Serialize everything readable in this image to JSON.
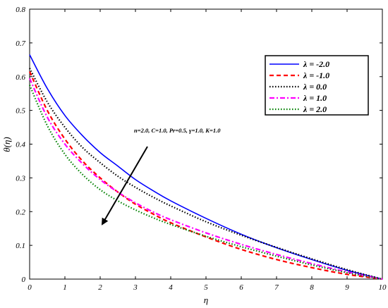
{
  "chart_data": {
    "type": "line",
    "xlabel": "η",
    "ylabel": "θ(η)",
    "xlim": [
      0,
      10
    ],
    "ylim": [
      0,
      0.8
    ],
    "x_ticks": [
      "0",
      "1",
      "2",
      "3",
      "4",
      "5",
      "6",
      "7",
      "8",
      "9",
      "10"
    ],
    "y_ticks": [
      "0",
      "0.1",
      "0.2",
      "0.3",
      "0.4",
      "0.5",
      "0.6",
      "0.7",
      "0.8"
    ],
    "grid": false,
    "legend_position": "top-right",
    "annotation": "n=2.0, C=1.0, Pr=0.5, γ=1.0, K=1.0",
    "series": [
      {
        "name": "λ = -2.0",
        "color": "#0000ff",
        "style": "solid",
        "x": [
          0,
          0.5,
          1,
          1.5,
          2,
          2.5,
          3,
          3.5,
          4,
          5,
          6,
          7,
          8,
          9,
          10
        ],
        "y": [
          0.665,
          0.565,
          0.485,
          0.425,
          0.375,
          0.335,
          0.295,
          0.262,
          0.232,
          0.18,
          0.133,
          0.093,
          0.058,
          0.026,
          0.0
        ]
      },
      {
        "name": "λ = -1.0",
        "color": "#ff0000",
        "style": "dashed",
        "x": [
          0,
          0.5,
          1,
          1.5,
          2,
          2.5,
          3,
          3.5,
          4,
          5,
          6,
          7,
          8,
          9,
          10
        ],
        "y": [
          0.615,
          0.5,
          0.415,
          0.35,
          0.3,
          0.258,
          0.222,
          0.193,
          0.167,
          0.125,
          0.088,
          0.058,
          0.034,
          0.014,
          0.0
        ]
      },
      {
        "name": "λ = 0.0",
        "color": "#000000",
        "style": "dotted",
        "x": [
          0,
          0.5,
          1,
          1.5,
          2,
          2.5,
          3,
          3.5,
          4,
          5,
          6,
          7,
          8,
          9,
          10
        ],
        "y": [
          0.625,
          0.525,
          0.45,
          0.39,
          0.345,
          0.305,
          0.272,
          0.243,
          0.217,
          0.17,
          0.13,
          0.094,
          0.06,
          0.028,
          0.0
        ]
      },
      {
        "name": "λ = 1.0",
        "color": "#ff00ff",
        "style": "dashdot",
        "x": [
          0,
          0.5,
          1,
          1.5,
          2,
          2.5,
          3,
          3.5,
          4,
          5,
          6,
          7,
          8,
          9,
          10
        ],
        "y": [
          0.595,
          0.48,
          0.4,
          0.342,
          0.295,
          0.258,
          0.226,
          0.199,
          0.176,
          0.137,
          0.103,
          0.073,
          0.046,
          0.021,
          0.0
        ]
      },
      {
        "name": "λ = 2.0",
        "color": "#008000",
        "style": "dotted",
        "x": [
          0,
          0.5,
          1,
          1.5,
          2,
          2.5,
          3,
          3.5,
          4,
          5,
          6,
          7,
          8,
          9,
          10
        ],
        "y": [
          0.575,
          0.455,
          0.37,
          0.31,
          0.265,
          0.232,
          0.205,
          0.182,
          0.162,
          0.127,
          0.096,
          0.068,
          0.042,
          0.019,
          0.0
        ]
      }
    ]
  }
}
